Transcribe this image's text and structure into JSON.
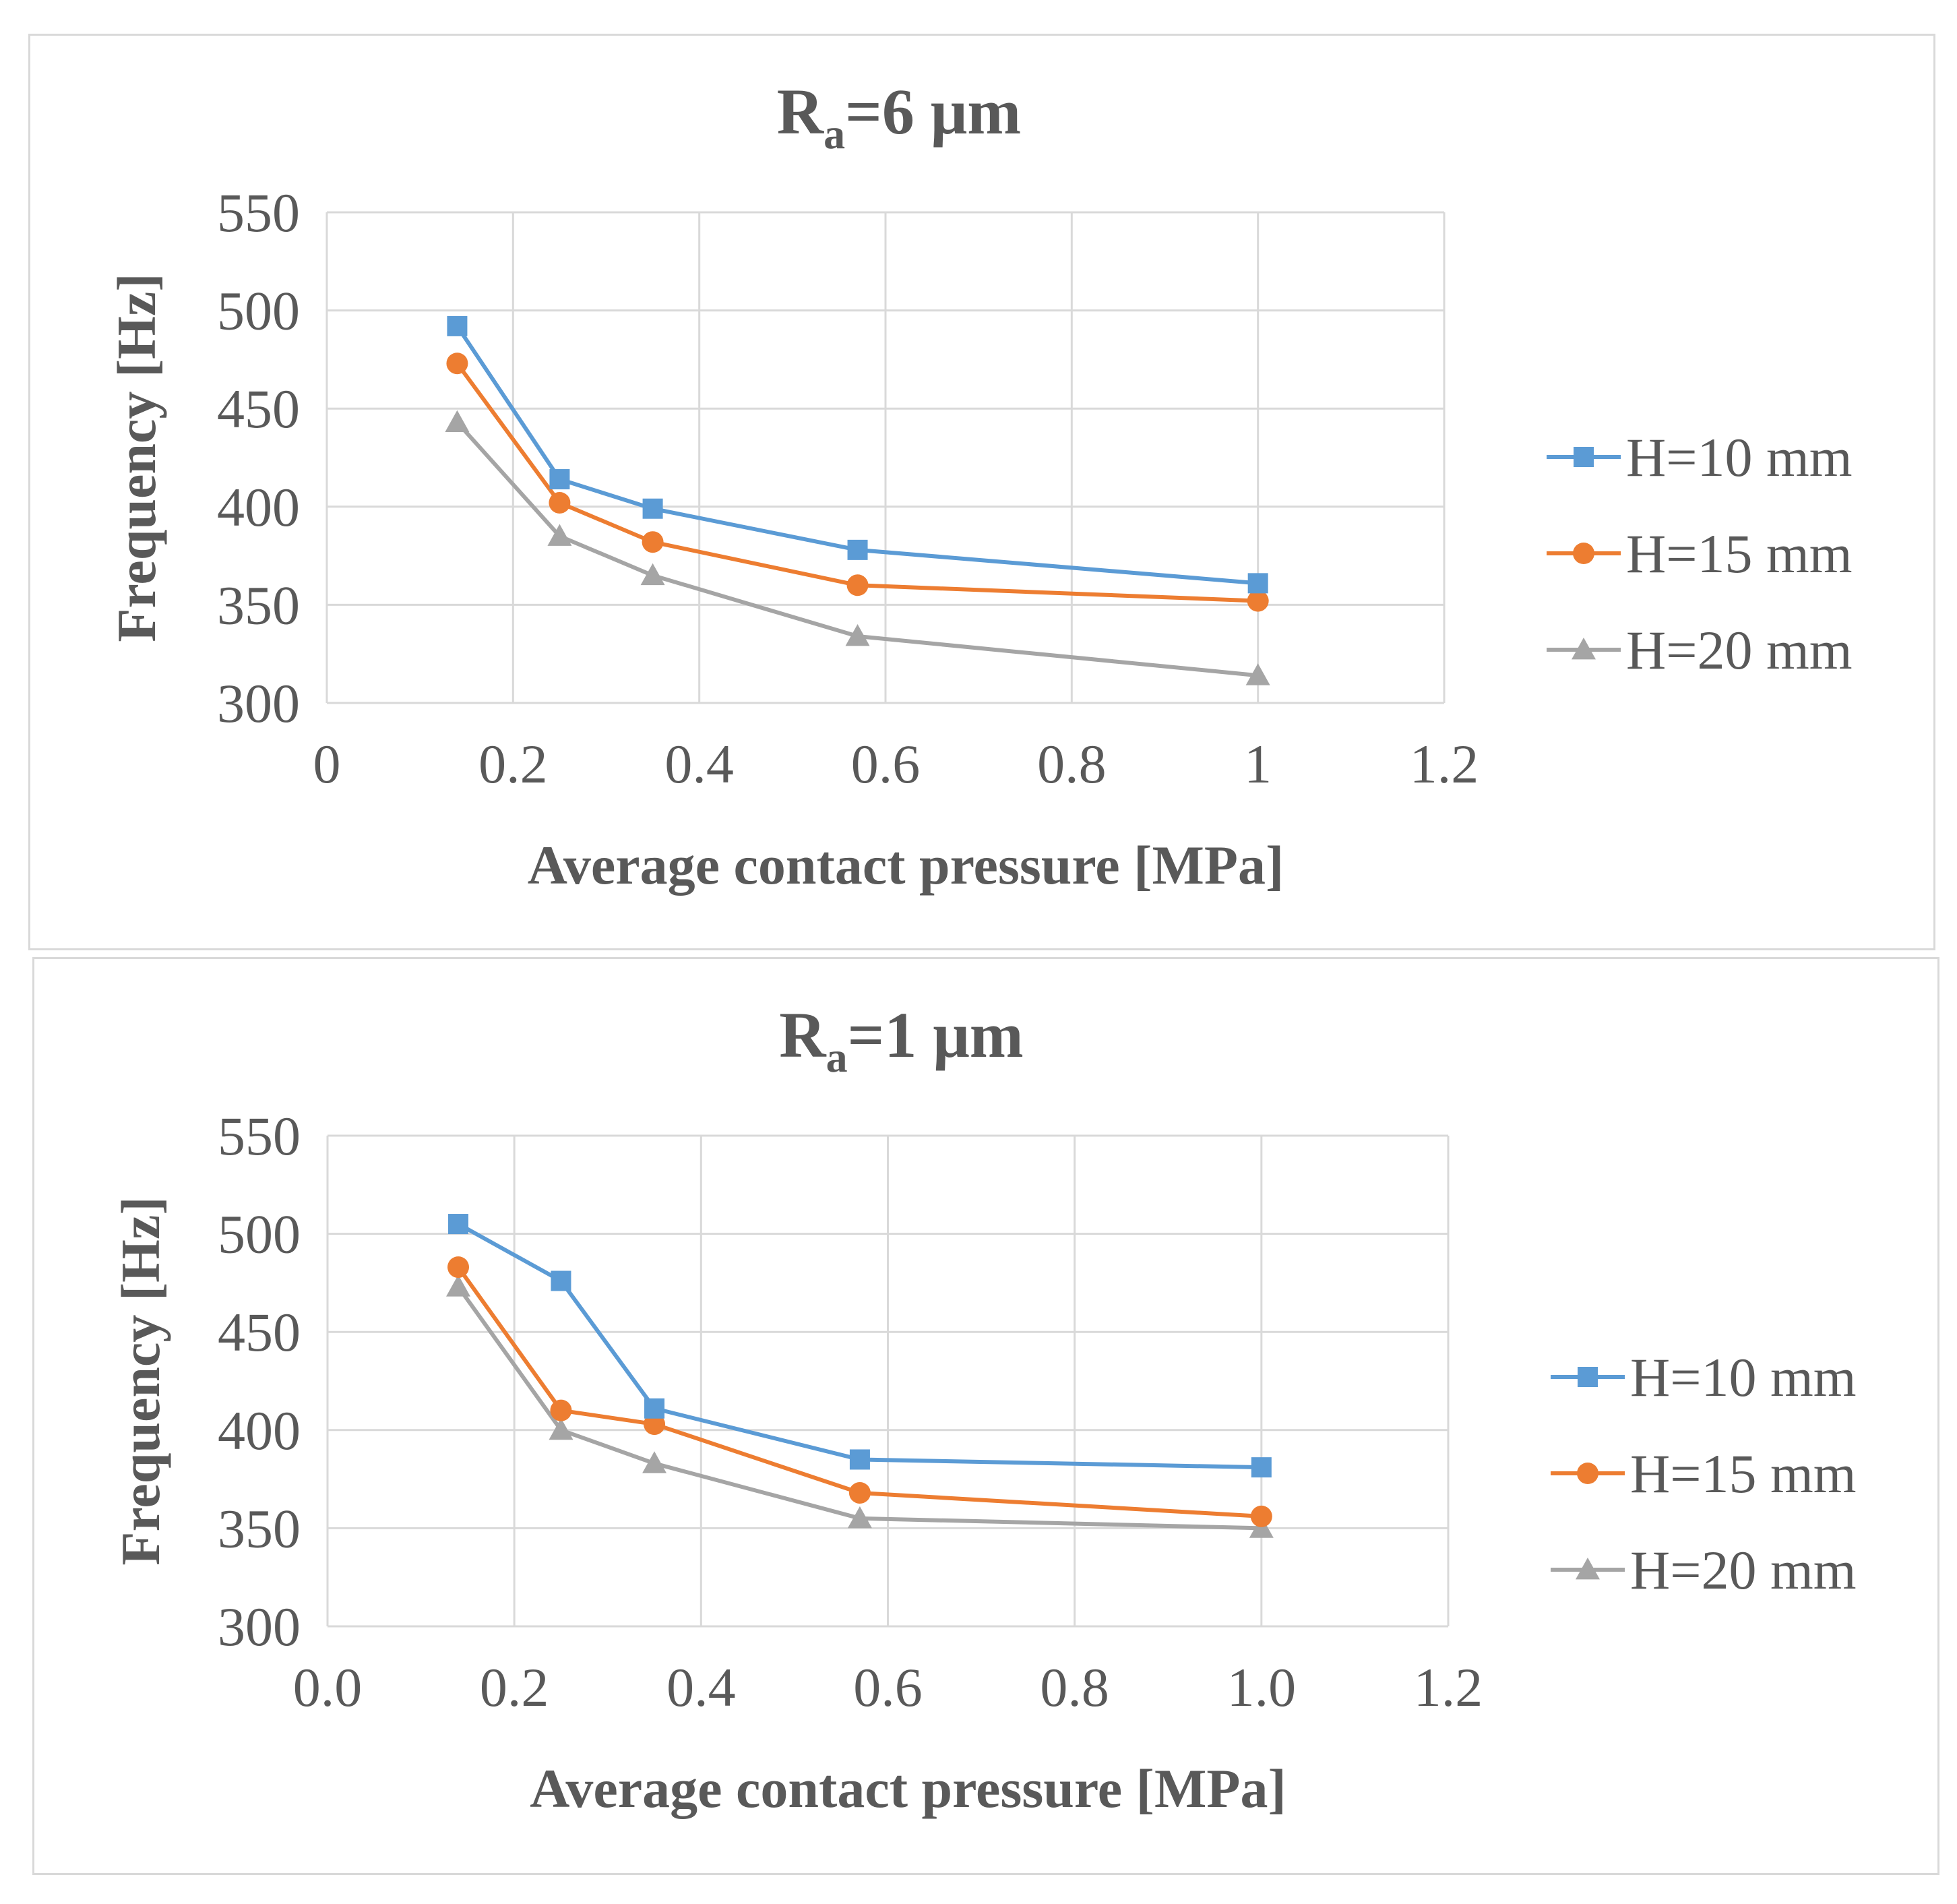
{
  "chart_data": [
    {
      "type": "line",
      "title": "Ra=6 μm",
      "title_main": "R",
      "title_sub": "a",
      "title_rest": "=6 μm",
      "xlabel": "Average contact pressure [MPa]",
      "ylabel": "Frequency [Hz]",
      "xlim": [
        0,
        1.2
      ],
      "ylim": [
        300,
        550
      ],
      "xticks": [
        "0",
        "0.2",
        "0.4",
        "0.6",
        "0.8",
        "1",
        "1.2"
      ],
      "yticks": [
        "550",
        "500",
        "450",
        "400",
        "350",
        "300"
      ],
      "grid": true,
      "legend_position": "right",
      "x": [
        0.14,
        0.25,
        0.35,
        0.57,
        1.0
      ],
      "series": [
        {
          "name": "H=10 mm",
          "color": "#5b9bd5",
          "marker": "square",
          "values": [
            492,
            414,
            399,
            378,
            361
          ]
        },
        {
          "name": "H=15 mm",
          "color": "#ed7d31",
          "marker": "circle",
          "values": [
            473,
            402,
            382,
            360,
            352
          ]
        },
        {
          "name": "H=20 mm",
          "color": "#a5a5a5",
          "marker": "triangle",
          "values": [
            443,
            385,
            365,
            334,
            314
          ]
        }
      ]
    },
    {
      "type": "line",
      "title": "Ra=1 μm",
      "title_main": "R",
      "title_sub": "a",
      "title_rest": "=1 μm",
      "xlabel": "Average contact pressure [MPa]",
      "ylabel": "Frequency [Hz]",
      "xlim": [
        0,
        1.2
      ],
      "ylim": [
        300,
        550
      ],
      "xticks": [
        "0.0",
        "0.2",
        "0.4",
        "0.6",
        "0.8",
        "1.0",
        "1.2"
      ],
      "yticks": [
        "550",
        "500",
        "450",
        "400",
        "350",
        "300"
      ],
      "grid": true,
      "legend_position": "right",
      "x": [
        0.14,
        0.25,
        0.35,
        0.57,
        1.0
      ],
      "series": [
        {
          "name": "H=10 mm",
          "color": "#5b9bd5",
          "marker": "square",
          "values": [
            505,
            476,
            411,
            385,
            381
          ]
        },
        {
          "name": "H=15 mm",
          "color": "#ed7d31",
          "marker": "circle",
          "values": [
            483,
            410,
            403,
            368,
            356
          ]
        },
        {
          "name": "H=20 mm",
          "color": "#a5a5a5",
          "marker": "triangle",
          "values": [
            473,
            400,
            383,
            355,
            350
          ]
        }
      ]
    }
  ]
}
